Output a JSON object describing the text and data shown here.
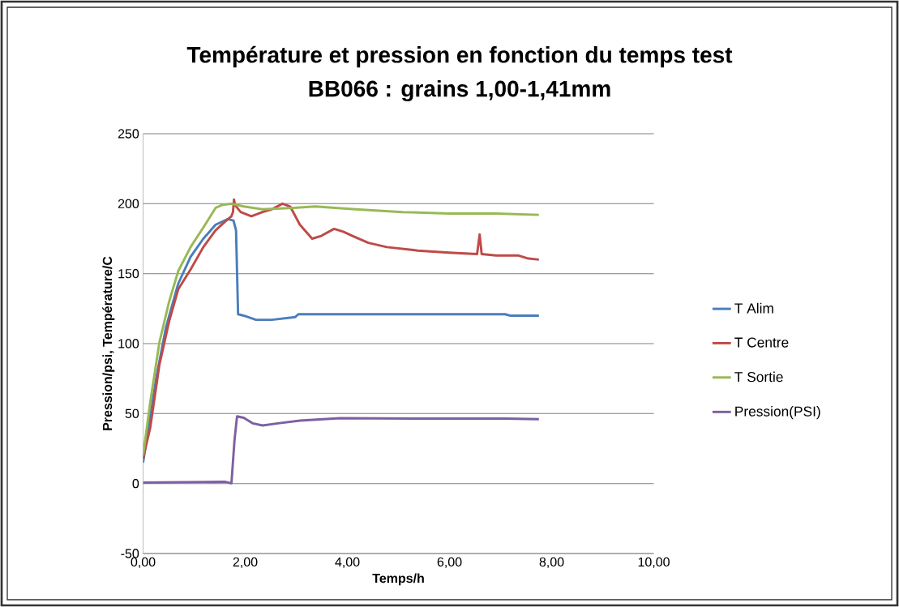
{
  "chart_data": {
    "type": "line",
    "title": "Température et pression en fonction du temps test",
    "subtitle": "BB066 : grains 1,00-1,41mm",
    "xlabel": "Temps/h",
    "ylabel": "Pression/psi, Température/C",
    "xlim": [
      0,
      10
    ],
    "xticks": [
      {
        "value": 0,
        "label": "0,00"
      },
      {
        "value": 2,
        "label": "2,00"
      },
      {
        "value": 4,
        "label": "4,00"
      },
      {
        "value": 6,
        "label": "6,00"
      },
      {
        "value": 8,
        "label": "8,00"
      },
      {
        "value": 10,
        "label": "10,00"
      }
    ],
    "ylim": [
      -50,
      250
    ],
    "yticks": [
      -50,
      0,
      50,
      100,
      150,
      200,
      250
    ],
    "grid": "y",
    "legend": "right",
    "marker": "none",
    "line_style": "solid",
    "series": [
      {
        "name": "T Alim",
        "color": "#4a7ebb",
        "x": [
          0,
          0.26,
          0.45,
          0.69,
          0.93,
          1.18,
          1.42,
          1.66,
          1.77,
          1.82,
          1.86,
          1.97,
          2.21,
          2.52,
          2.98,
          3.04,
          4.77,
          7.09,
          7.18,
          7.75
        ],
        "values": [
          15,
          76,
          112,
          143,
          162,
          175,
          185,
          189,
          188,
          181,
          121,
          120,
          117,
          117,
          119,
          121,
          121,
          121,
          120,
          120
        ]
      },
      {
        "name": "T Centre",
        "color": "#be4b48",
        "x": [
          0,
          0.14,
          0.32,
          0.51,
          0.69,
          0.93,
          1.18,
          1.42,
          1.66,
          1.73,
          1.76,
          1.78,
          1.8,
          1.91,
          2.12,
          2.34,
          2.52,
          2.73,
          2.88,
          3.07,
          3.31,
          3.49,
          3.74,
          3.92,
          4.1,
          4.41,
          4.77,
          5.38,
          5.99,
          6.54,
          6.59,
          6.63,
          6.91,
          7.34,
          7.52,
          7.75
        ],
        "values": [
          18,
          40,
          85,
          116,
          139,
          153,
          169,
          181,
          189,
          191,
          194,
          203,
          199,
          194,
          191,
          194,
          196,
          200,
          198,
          185,
          175,
          177,
          182,
          180,
          177,
          172,
          169,
          166.5,
          165,
          164,
          178,
          164,
          163,
          163,
          161,
          160
        ]
      },
      {
        "name": "T Sortie",
        "color": "#98b954",
        "x": [
          0,
          0.14,
          0.32,
          0.51,
          0.69,
          0.93,
          1.18,
          1.42,
          1.54,
          1.73,
          1.97,
          2.34,
          2.95,
          3.37,
          4.16,
          5.08,
          5.99,
          6.91,
          7.75
        ],
        "values": [
          20,
          58,
          101,
          130,
          152,
          169,
          183,
          197,
          199,
          200,
          198,
          196,
          197,
          198,
          196,
          194,
          193,
          193,
          192
        ]
      },
      {
        "name": "Pression(PSI)",
        "color": "#7d60a0",
        "x": [
          0,
          1.6,
          1.73,
          1.79,
          1.84,
          1.97,
          2.15,
          2.34,
          2.64,
          3.07,
          3.86,
          5.38,
          7.09,
          7.75
        ],
        "values": [
          0.7,
          1.3,
          0.2,
          31,
          48,
          47,
          43,
          41.5,
          43,
          45,
          46.7,
          46.4,
          46.4,
          46
        ]
      }
    ]
  }
}
